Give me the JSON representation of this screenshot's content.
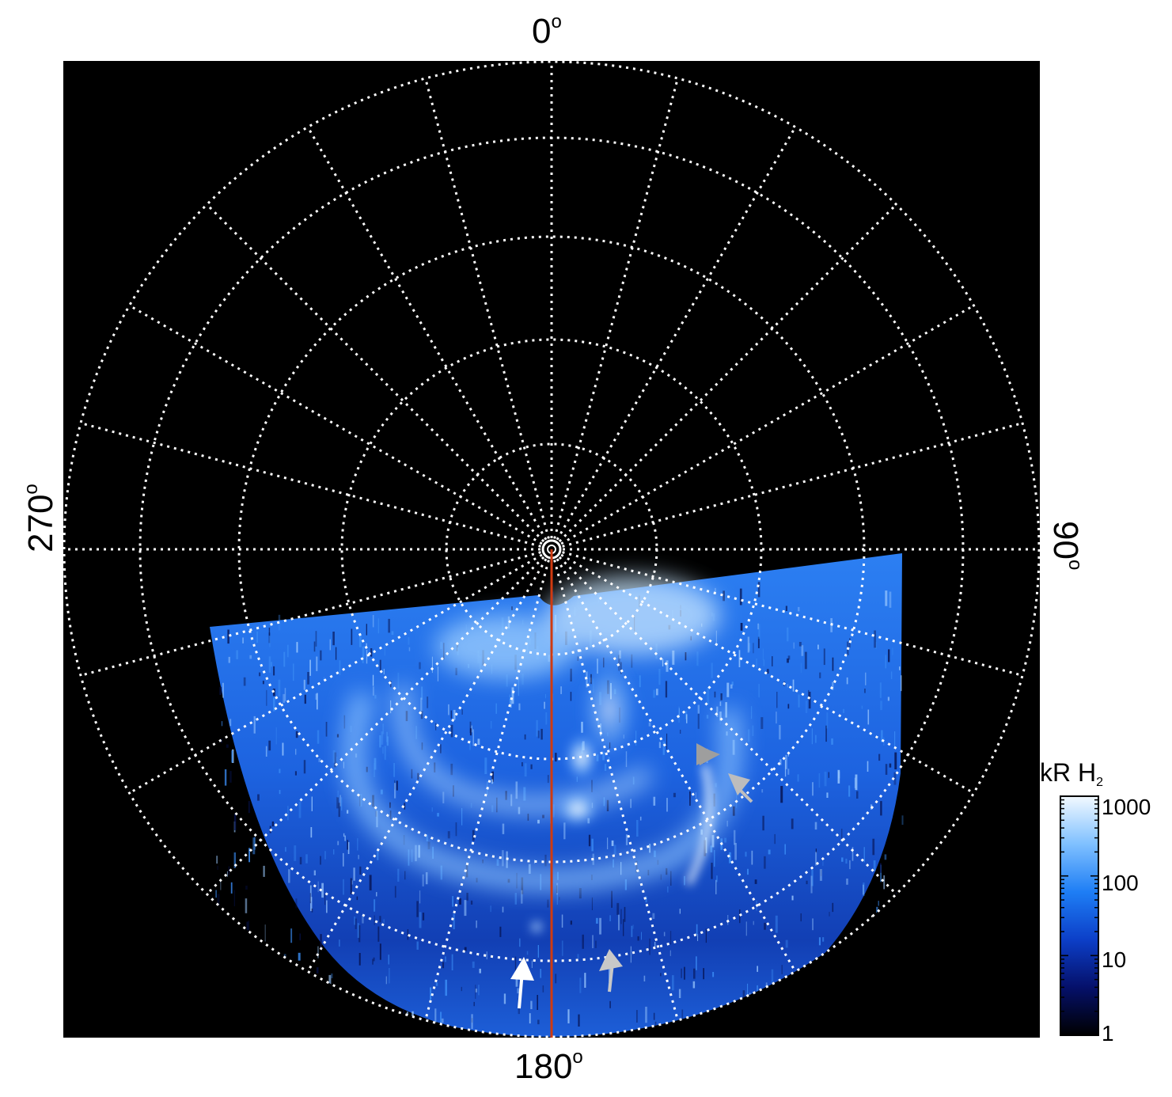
{
  "labels": {
    "top": "0",
    "bottom": "180",
    "left": "270",
    "right": "90",
    "degree_symbol": "o"
  },
  "colorbar": {
    "title_main": "kR H",
    "title_sub": "2",
    "ticks": [
      "1000",
      "100",
      "10",
      "1"
    ],
    "scale": "log"
  },
  "colors": {
    "background": "#000000",
    "grid": "#ffffff",
    "meridian_line": "#d03a10",
    "emission_dark": "#0a1a8a",
    "emission_mid": "#1a6ef0",
    "emission_bright": "#e8f4ff",
    "arrow_white": "#ffffff",
    "arrow_grey": "#bdbdbd"
  },
  "annotations": [
    {
      "type": "arrow",
      "color": "white"
    },
    {
      "type": "arrow",
      "color": "grey"
    },
    {
      "type": "arrow",
      "color": "grey"
    },
    {
      "type": "arrow",
      "color": "grey"
    }
  ]
}
